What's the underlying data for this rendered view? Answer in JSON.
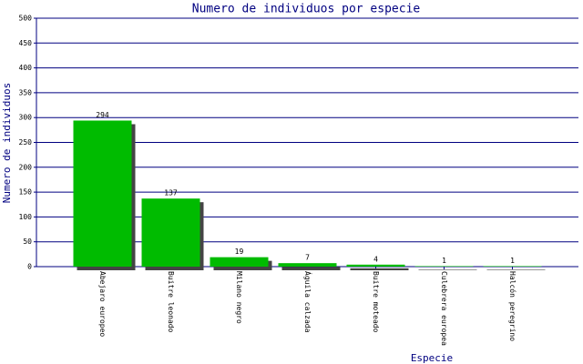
{
  "chart_data": {
    "type": "bar",
    "title": "Numero de individuos por especie",
    "x_label": "Especie",
    "y_label": "Numero de individuos",
    "categories": [
      "Abejaro europeo",
      "Buitre leonado",
      "Milano negro",
      "Águila calzada",
      "Buitre moteado",
      "Culebrera europea",
      "Halcón peregrino"
    ],
    "values": [
      294,
      137,
      19,
      7,
      4,
      1,
      1
    ],
    "color": "#00bb00",
    "ylim": [
      0,
      500
    ],
    "yticks": [
      0,
      50,
      100,
      150,
      200,
      250,
      300,
      350,
      400,
      450,
      500
    ],
    "grid": true
  }
}
